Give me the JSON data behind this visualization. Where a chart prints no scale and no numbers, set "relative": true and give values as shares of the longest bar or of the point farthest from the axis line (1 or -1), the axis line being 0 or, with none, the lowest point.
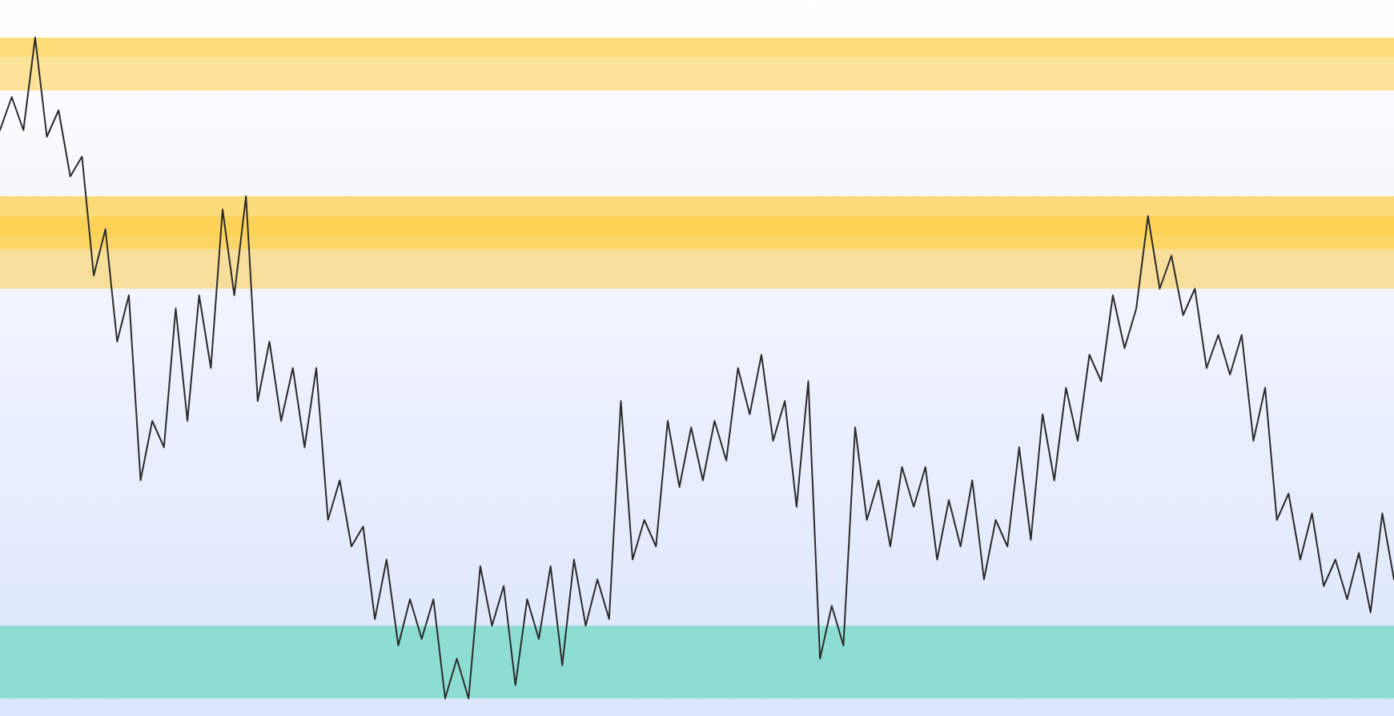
{
  "chart_data": {
    "type": "line",
    "relative": true,
    "categories": [
      null,
      null,
      null,
      null,
      null,
      null,
      null,
      null,
      null,
      null,
      null,
      null,
      null,
      null,
      null,
      null,
      null,
      null,
      null,
      null,
      null,
      null,
      null,
      null,
      null,
      null,
      null,
      null,
      null,
      null,
      null,
      null,
      null,
      null,
      null,
      null,
      null,
      null,
      null,
      null,
      null,
      null,
      null,
      null,
      null,
      null,
      null,
      null,
      null,
      null,
      null,
      null,
      null,
      null,
      null,
      null,
      null,
      null,
      null,
      null,
      null,
      null,
      null,
      null,
      null,
      null,
      null,
      null,
      null,
      null,
      null,
      null,
      null,
      null,
      null,
      null,
      null,
      null,
      null,
      null,
      null,
      null,
      null,
      null,
      null,
      null,
      null,
      null,
      null,
      null,
      null,
      null,
      null,
      null,
      null,
      null,
      null,
      null,
      null,
      null,
      null,
      null,
      null,
      null,
      null,
      null,
      null,
      null,
      null,
      null,
      null,
      null,
      null,
      null,
      null,
      null,
      null,
      null,
      null,
      null
    ],
    "series": [
      {
        "color": "#2b2b2b",
        "values": [
          0.86,
          0.91,
          0.86,
          1,
          0.85,
          0.89,
          0.79,
          0.82,
          0.64,
          0.71,
          0.54,
          0.61,
          0.33,
          0.42,
          0.38,
          0.59,
          0.42,
          0.61,
          0.5,
          0.74,
          0.61,
          0.76,
          0.45,
          0.54,
          0.42,
          0.5,
          0.38,
          0.5,
          0.27,
          0.33,
          0.23,
          0.26,
          0.12,
          0.21,
          0.08,
          0.15,
          0.09,
          0.15,
          0,
          0.06,
          0,
          0.2,
          0.11,
          0.17,
          0.02,
          0.15,
          0.09,
          0.2,
          0.05,
          0.21,
          0.11,
          0.18,
          0.12,
          0.45,
          0.21,
          0.27,
          0.23,
          0.42,
          0.32,
          0.41,
          0.33,
          0.42,
          0.36,
          0.5,
          0.43,
          0.52,
          0.39,
          0.45,
          0.29,
          0.48,
          0.06,
          0.14,
          0.08,
          0.41,
          0.27,
          0.33,
          0.23,
          0.35,
          0.29,
          0.35,
          0.21,
          0.3,
          0.23,
          0.33,
          0.18,
          0.27,
          0.23,
          0.38,
          0.24,
          0.43,
          0.33,
          0.47,
          0.39,
          0.52,
          0.48,
          0.61,
          0.53,
          0.59,
          0.73,
          0.62,
          0.67,
          0.58,
          0.62,
          0.5,
          0.55,
          0.49,
          0.55,
          0.39,
          0.47,
          0.27,
          0.31,
          0.21,
          0.28,
          0.17,
          0.21,
          0.15,
          0.22,
          0.13,
          0.28,
          0.18
        ]
      }
    ],
    "bands": [
      {
        "axis": "y",
        "from": 0.97,
        "to": 1,
        "color": "#fdd663"
      },
      {
        "axis": "y",
        "from": 0.92,
        "to": 0.97,
        "color": "#fddd88"
      },
      {
        "axis": "y",
        "from": 0.73,
        "to": 0.76,
        "color": "#fdd663"
      },
      {
        "axis": "y",
        "from": 0.7,
        "to": 0.73,
        "color": "#fbdb8a"
      },
      {
        "axis": "y",
        "from": 0.68,
        "to": 0.73,
        "color": "#fdd04a"
      },
      {
        "axis": "y",
        "from": 0.62,
        "to": 0.68,
        "color": "#f9d98a"
      },
      {
        "axis": "y",
        "from": 0,
        "to": 0.11,
        "color": "#7fdbca"
      }
    ]
  }
}
